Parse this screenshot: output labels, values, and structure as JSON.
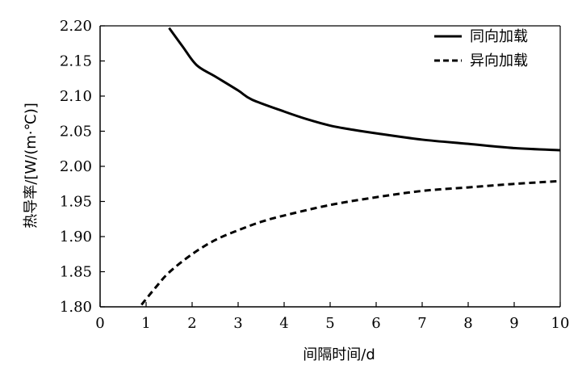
{
  "chart_data": {
    "type": "line",
    "xlabel": "间隔时间/d",
    "ylabel": "热导率/[W/(m·℃)]",
    "xlim": [
      0,
      10
    ],
    "ylim": [
      1.8,
      2.2
    ],
    "x_ticks": [
      "0",
      "1",
      "2",
      "3",
      "4",
      "5",
      "6",
      "7",
      "8",
      "9",
      "10"
    ],
    "y_ticks": [
      "1.80",
      "1.85",
      "1.90",
      "1.95",
      "2.00",
      "2.05",
      "2.10",
      "2.15",
      "2.20"
    ],
    "grid": false,
    "legend_position": "top-right",
    "series": [
      {
        "name": "同向加载",
        "line_style": "solid",
        "color": "#000000",
        "x": [
          1.5,
          1.8,
          2.1,
          2.5,
          3.0,
          3.3,
          4.0,
          4.5,
          5.0,
          5.5,
          6.0,
          7.0,
          8.0,
          9.0,
          10.0
        ],
        "y": [
          2.197,
          2.17,
          2.144,
          2.128,
          2.108,
          2.095,
          2.078,
          2.067,
          2.058,
          2.052,
          2.047,
          2.038,
          2.032,
          2.026,
          2.023
        ]
      },
      {
        "name": "异向加载",
        "line_style": "dashed",
        "color": "#000000",
        "x": [
          0.9,
          1.2,
          1.5,
          2.0,
          2.5,
          3.0,
          3.5,
          4.0,
          5.0,
          6.0,
          7.0,
          8.0,
          9.0,
          10.0
        ],
        "y": [
          1.803,
          1.827,
          1.849,
          1.875,
          1.895,
          1.909,
          1.921,
          1.93,
          1.945,
          1.956,
          1.965,
          1.97,
          1.975,
          1.979
        ]
      }
    ]
  }
}
